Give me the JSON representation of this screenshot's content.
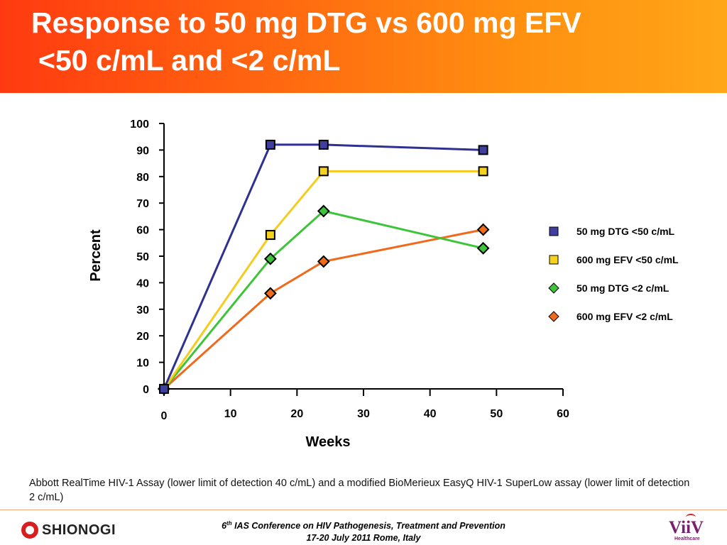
{
  "header": {
    "title_line1": "Response to 50 mg DTG vs 600 mg EFV",
    "title_line2": "<50 c/mL and <2 c/mL"
  },
  "chart_data": {
    "type": "line",
    "xlabel": "Weeks",
    "ylabel": "Percent",
    "xlim": [
      0,
      60
    ],
    "ylim": [
      0,
      100
    ],
    "xticks": [
      0,
      10,
      20,
      30,
      40,
      50,
      60
    ],
    "yticks": [
      0,
      10,
      20,
      30,
      40,
      50,
      60,
      70,
      80,
      90,
      100
    ],
    "legend_position": "right",
    "series": [
      {
        "name": "50 mg DTG <50 c/mL",
        "color": "#2e3192",
        "fill": "#3f3fa0",
        "marker": "square",
        "x": [
          0,
          16,
          24,
          48
        ],
        "y": [
          0,
          92,
          92,
          90
        ]
      },
      {
        "name": "600 mg EFV <50 c/mL",
        "color": "#f5cc1e",
        "fill": "#f7d21c",
        "marker": "square",
        "x": [
          0,
          16,
          24,
          48
        ],
        "y": [
          0,
          58,
          82,
          82
        ]
      },
      {
        "name": "50 mg DTG <2 c/mL",
        "color": "#3ec43a",
        "fill": "#3ec43a",
        "marker": "diamond",
        "x": [
          0,
          16,
          24,
          48
        ],
        "y": [
          0,
          49,
          67,
          53
        ]
      },
      {
        "name": "600 mg EFV <2 c/mL",
        "color": "#f06a1c",
        "fill": "#f06a1c",
        "marker": "diamond",
        "x": [
          0,
          16,
          24,
          48
        ],
        "y": [
          0,
          36,
          48,
          60
        ]
      }
    ]
  },
  "footnote": "Abbott RealTime HIV-1 Assay (lower limit of detection 40 c/mL) and a modified BioMerieux EasyQ HIV-1 SuperLow assay (lower limit of detection 2 c/mL)",
  "footer": {
    "conference_num": "6",
    "conference_sup": "th",
    "conference_rest": " IAS Conference on HIV Pathogenesis, Treatment and Prevention",
    "conference_dates": "17-20 July 2011 Rome, Italy",
    "logo_left": "SHIONOGI",
    "logo_right": "ViiV",
    "logo_right_sub": "Healthcare"
  }
}
